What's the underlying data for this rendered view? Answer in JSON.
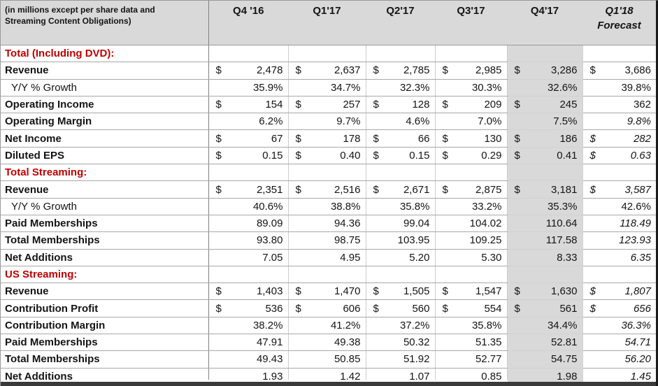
{
  "colors": {
    "section_red": "#c00000",
    "header_bg": "#d9d9d9",
    "highlight_bg": "#d9d9d9",
    "bottom_bar": "#3a3a3a"
  },
  "chart_data": {
    "type": "table",
    "note_line1": "(in millions except per share data and",
    "note_line2": "Streaming Content Obligations)",
    "columns": [
      {
        "label": "Q4 '16",
        "sublabel": "",
        "highlight": false,
        "italic": false
      },
      {
        "label": "Q1'17",
        "sublabel": "",
        "highlight": false,
        "italic": false
      },
      {
        "label": "Q2'17",
        "sublabel": "",
        "highlight": false,
        "italic": false
      },
      {
        "label": "Q3'17",
        "sublabel": "",
        "highlight": false,
        "italic": false
      },
      {
        "label": "Q4'17",
        "sublabel": "",
        "highlight": true,
        "italic": false
      },
      {
        "label": "Q1'18",
        "sublabel": "Forecast",
        "highlight": false,
        "italic": true
      }
    ],
    "sections": [
      {
        "header": "Total (Including DVD):",
        "rows": [
          {
            "label": "Revenue",
            "indent": false,
            "bold": true,
            "dollar": [
              1,
              1,
              1,
              1,
              1,
              1
            ],
            "values": [
              "2,478",
              "2,637",
              "2,785",
              "2,985",
              "3,286",
              "3,686"
            ],
            "forecast_italic": false
          },
          {
            "label": "Y/Y % Growth",
            "indent": true,
            "bold": false,
            "dollar": [
              0,
              0,
              0,
              0,
              0,
              0
            ],
            "values": [
              "35.9%",
              "34.7%",
              "32.3%",
              "30.3%",
              "32.6%",
              "39.8%"
            ],
            "forecast_italic": false
          },
          {
            "label": "Operating Income",
            "indent": false,
            "bold": true,
            "dollar": [
              1,
              1,
              1,
              1,
              1,
              0
            ],
            "values": [
              "154",
              "257",
              "128",
              "209",
              "245",
              "362"
            ],
            "forecast_italic": false
          },
          {
            "label": "Operating Margin",
            "indent": false,
            "bold": true,
            "dollar": [
              0,
              0,
              0,
              0,
              0,
              0
            ],
            "values": [
              "6.2%",
              "9.7%",
              "4.6%",
              "7.0%",
              "7.5%",
              "9.8%"
            ],
            "forecast_italic": true
          },
          {
            "label": "Net Income",
            "indent": false,
            "bold": true,
            "dollar": [
              1,
              1,
              1,
              1,
              1,
              1
            ],
            "values": [
              "67",
              "178",
              "66",
              "130",
              "186",
              "282"
            ],
            "forecast_italic": true
          },
          {
            "label": "Diluted EPS",
            "indent": false,
            "bold": true,
            "dollar": [
              1,
              1,
              1,
              1,
              1,
              1
            ],
            "values": [
              "0.15",
              "0.40",
              "0.15",
              "0.29",
              "0.41",
              "0.63"
            ],
            "forecast_italic": true
          }
        ]
      },
      {
        "header": "Total Streaming:",
        "rows": [
          {
            "label": "Revenue",
            "indent": false,
            "bold": true,
            "dollar": [
              1,
              1,
              1,
              1,
              1,
              1
            ],
            "values": [
              "2,351",
              "2,516",
              "2,671",
              "2,875",
              "3,181",
              "3,587"
            ],
            "forecast_italic": true
          },
          {
            "label": "Y/Y % Growth",
            "indent": true,
            "bold": false,
            "dollar": [
              0,
              0,
              0,
              0,
              0,
              0
            ],
            "values": [
              "40.6%",
              "38.8%",
              "35.8%",
              "33.2%",
              "35.3%",
              "42.6%"
            ],
            "forecast_italic": false
          },
          {
            "label": "Paid Memberships",
            "indent": false,
            "bold": true,
            "dollar": [
              0,
              0,
              0,
              0,
              0,
              0
            ],
            "values": [
              "89.09",
              "94.36",
              "99.04",
              "104.02",
              "110.64",
              "118.49"
            ],
            "forecast_italic": true
          },
          {
            "label": "Total Memberships",
            "indent": false,
            "bold": true,
            "dollar": [
              0,
              0,
              0,
              0,
              0,
              0
            ],
            "values": [
              "93.80",
              "98.75",
              "103.95",
              "109.25",
              "117.58",
              "123.93"
            ],
            "forecast_italic": true
          },
          {
            "label": "Net Additions",
            "indent": false,
            "bold": true,
            "dollar": [
              0,
              0,
              0,
              0,
              0,
              0
            ],
            "values": [
              "7.05",
              "4.95",
              "5.20",
              "5.30",
              "8.33",
              "6.35"
            ],
            "forecast_italic": true
          }
        ]
      },
      {
        "header": "US Streaming:",
        "rows": [
          {
            "label": "Revenue",
            "indent": false,
            "bold": true,
            "dollar": [
              1,
              1,
              1,
              1,
              1,
              1
            ],
            "values": [
              "1,403",
              "1,470",
              "1,505",
              "1,547",
              "1,630",
              "1,807"
            ],
            "forecast_italic": true
          },
          {
            "label": "Contribution Profit",
            "indent": false,
            "bold": true,
            "dollar": [
              1,
              1,
              1,
              1,
              1,
              1
            ],
            "values": [
              "536",
              "606",
              "560",
              "554",
              "561",
              "656"
            ],
            "forecast_italic": true
          },
          {
            "label": "Contribution Margin",
            "indent": false,
            "bold": true,
            "dollar": [
              0,
              0,
              0,
              0,
              0,
              0
            ],
            "values": [
              "38.2%",
              "41.2%",
              "37.2%",
              "35.8%",
              "34.4%",
              "36.3%"
            ],
            "forecast_italic": true
          },
          {
            "label": "Paid Memberships",
            "indent": false,
            "bold": true,
            "dollar": [
              0,
              0,
              0,
              0,
              0,
              0
            ],
            "values": [
              "47.91",
              "49.38",
              "50.32",
              "51.35",
              "52.81",
              "54.71"
            ],
            "forecast_italic": true
          },
          {
            "label": "Total Memberships",
            "indent": false,
            "bold": true,
            "dollar": [
              0,
              0,
              0,
              0,
              0,
              0
            ],
            "values": [
              "49.43",
              "50.85",
              "51.92",
              "52.77",
              "54.75",
              "56.20"
            ],
            "forecast_italic": true
          },
          {
            "label": "Net Additions",
            "indent": false,
            "bold": true,
            "dollar": [
              0,
              0,
              0,
              0,
              0,
              0
            ],
            "values": [
              "1.93",
              "1.42",
              "1.07",
              "0.85",
              "1.98",
              "1.45"
            ],
            "forecast_italic": true
          }
        ]
      }
    ]
  }
}
